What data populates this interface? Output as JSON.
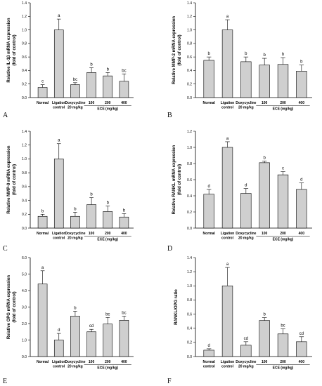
{
  "chart_data": [
    {
      "type": "bar",
      "panel": "A",
      "ylabel": "Relative IL-1β mRNA expression (fold of control)",
      "ylim": [
        0,
        1.4
      ],
      "yticks": [
        0.0,
        0.2,
        0.4,
        0.6,
        0.8,
        1.0,
        1.2,
        1.4
      ],
      "categories": [
        [
          "Normal"
        ],
        [
          "Ligation",
          "control"
        ],
        [
          "Doxycycline",
          "20 mg/kg"
        ],
        [
          "100"
        ],
        [
          "200"
        ],
        [
          "400"
        ]
      ],
      "group_label": "ECE (mg/kg)",
      "values": [
        0.15,
        1.0,
        0.19,
        0.37,
        0.32,
        0.24
      ],
      "errors": [
        0.04,
        0.16,
        0.03,
        0.07,
        0.05,
        0.11
      ],
      "letters": [
        "c",
        "a",
        "bc",
        "b",
        "b",
        "bc"
      ]
    },
    {
      "type": "bar",
      "panel": "B",
      "ylabel": "Relative MMP-2 mRNA expression (fold of control)",
      "ylim": [
        0,
        1.4
      ],
      "yticks": [
        0.0,
        0.2,
        0.4,
        0.6,
        0.8,
        1.0,
        1.2,
        1.4
      ],
      "categories": [
        [
          "Normal"
        ],
        [
          "Ligation",
          "control"
        ],
        [
          "Doxycycline",
          "20 mg/kg"
        ],
        [
          "100"
        ],
        [
          "200"
        ],
        [
          "400"
        ]
      ],
      "group_label": "ECE (mg/kg)",
      "values": [
        0.55,
        1.0,
        0.53,
        0.48,
        0.49,
        0.39
      ],
      "errors": [
        0.05,
        0.15,
        0.07,
        0.1,
        0.1,
        0.09
      ],
      "letters": [
        "b",
        "a",
        "b",
        "b",
        "b",
        "b"
      ]
    },
    {
      "type": "bar",
      "panel": "C",
      "ylabel": "Relative MMP-9 mRNA expression (fold of control)",
      "ylim": [
        0,
        1.4
      ],
      "yticks": [
        0.0,
        0.2,
        0.4,
        0.6,
        0.8,
        1.0,
        1.2,
        1.4
      ],
      "categories": [
        [
          "Normal"
        ],
        [
          "Ligation",
          "control"
        ],
        [
          "Doxycycline",
          "20 mg/kg"
        ],
        [
          "100"
        ],
        [
          "200"
        ],
        [
          "400"
        ]
      ],
      "group_label": "ECE (mg/kg)",
      "values": [
        0.17,
        1.0,
        0.17,
        0.34,
        0.24,
        0.16
      ],
      "errors": [
        0.03,
        0.22,
        0.06,
        0.1,
        0.08,
        0.05
      ],
      "letters": [
        "b",
        "a",
        "b",
        "b",
        "b",
        "b"
      ]
    },
    {
      "type": "bar",
      "panel": "D",
      "ylabel": "Relative RANKL mRNA expression (fold of control)",
      "ylim": [
        0,
        1.2
      ],
      "yticks": [
        0.0,
        0.2,
        0.4,
        0.6,
        0.8,
        1.0,
        1.2
      ],
      "categories": [
        [
          "Normal"
        ],
        [
          "Ligation",
          "control"
        ],
        [
          "Doxycycline",
          "20 mg/kg"
        ],
        [
          "100"
        ],
        [
          "200"
        ],
        [
          "400"
        ]
      ],
      "group_label": "ECE (mg/kg)",
      "values": [
        0.42,
        1.0,
        0.43,
        0.81,
        0.66,
        0.48
      ],
      "errors": [
        0.06,
        0.07,
        0.06,
        0.02,
        0.04,
        0.08
      ],
      "letters": [
        "d",
        "a",
        "d",
        "b",
        "c",
        "d"
      ]
    },
    {
      "type": "bar",
      "panel": "E",
      "ylabel": "Relative OPG mRNA expression (fold of control)",
      "ylim": [
        0,
        6.0
      ],
      "yticks": [
        0.0,
        1.0,
        2.0,
        3.0,
        4.0,
        5.0,
        6.0
      ],
      "categories": [
        [
          "Normal"
        ],
        [
          "Ligation",
          "control"
        ],
        [
          "Doxycycline",
          "20 mg/kg"
        ],
        [
          "100"
        ],
        [
          "200"
        ],
        [
          "400"
        ]
      ],
      "group_label": "ECE (mg/kg)",
      "values": [
        4.4,
        1.0,
        2.45,
        1.5,
        1.97,
        2.2
      ],
      "errors": [
        0.8,
        0.4,
        0.3,
        0.15,
        0.4,
        0.25
      ],
      "letters": [
        "a",
        "d",
        "b",
        "cd",
        "bc",
        "bc"
      ]
    },
    {
      "type": "bar",
      "panel": "F",
      "ylabel": "RANKL/OPG ratio",
      "ylim": [
        0,
        1.4
      ],
      "yticks": [
        0.0,
        0.2,
        0.4,
        0.6,
        0.8,
        1.0,
        1.2,
        1.4
      ],
      "categories": [
        [
          "Normal",
          "control"
        ],
        [
          "Ligation",
          "control"
        ],
        [
          "Doxycycline",
          "20 mg/kg"
        ],
        [
          "100"
        ],
        [
          "200"
        ],
        [
          "400"
        ]
      ],
      "group_label": "ECE (mg/kg)",
      "values": [
        0.09,
        1.0,
        0.16,
        0.51,
        0.32,
        0.21
      ],
      "errors": [
        0.02,
        0.26,
        0.05,
        0.04,
        0.07,
        0.07
      ],
      "letters": [
        "d",
        "a",
        "cd",
        "b",
        "bc",
        "cd"
      ]
    }
  ]
}
